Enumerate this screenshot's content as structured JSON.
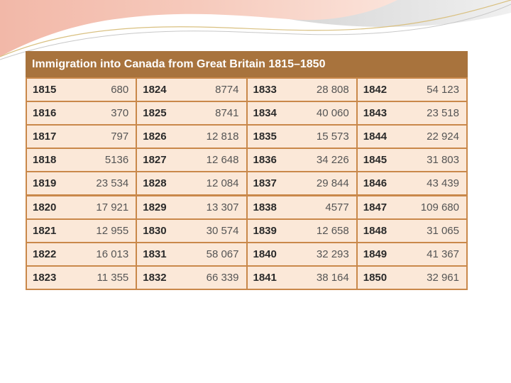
{
  "title": "Immigration into Canada from Great Britain 1815–1850",
  "colors": {
    "header_bg": "#a8733d",
    "cell_bg": "#fbe8d8",
    "border": "#c9884a",
    "decoration": "#e9a89c"
  },
  "columns": [
    [
      {
        "year": "1815",
        "value": "680"
      },
      {
        "year": "1816",
        "value": "370"
      },
      {
        "year": "1817",
        "value": "797"
      },
      {
        "year": "1818",
        "value": "5136"
      },
      {
        "year": "1819",
        "value": "23 534"
      },
      {
        "year": "1820",
        "value": "17 921"
      },
      {
        "year": "1821",
        "value": "12 955"
      },
      {
        "year": "1822",
        "value": "16 013"
      },
      {
        "year": "1823",
        "value": "11 355"
      }
    ],
    [
      {
        "year": "1824",
        "value": "8774"
      },
      {
        "year": "1825",
        "value": "8741"
      },
      {
        "year": "1826",
        "value": "12 818"
      },
      {
        "year": "1827",
        "value": "12 648"
      },
      {
        "year": "1828",
        "value": "12 084"
      },
      {
        "year": "1829",
        "value": "13 307"
      },
      {
        "year": "1830",
        "value": "30 574"
      },
      {
        "year": "1831",
        "value": "58 067"
      },
      {
        "year": "1832",
        "value": "66 339"
      }
    ],
    [
      {
        "year": "1833",
        "value": "28 808"
      },
      {
        "year": "1834",
        "value": "40 060"
      },
      {
        "year": "1835",
        "value": "15 573"
      },
      {
        "year": "1836",
        "value": "34 226"
      },
      {
        "year": "1837",
        "value": "29 844"
      },
      {
        "year": "1838",
        "value": "4577"
      },
      {
        "year": "1839",
        "value": "12 658"
      },
      {
        "year": "1840",
        "value": "32 293"
      },
      {
        "year": "1841",
        "value": "38 164"
      }
    ],
    [
      {
        "year": "1842",
        "value": "54 123"
      },
      {
        "year": "1843",
        "value": "23 518"
      },
      {
        "year": "1844",
        "value": "22 924"
      },
      {
        "year": "1845",
        "value": "31 803"
      },
      {
        "year": "1846",
        "value": "43 439"
      },
      {
        "year": "1847",
        "value": "109 680"
      },
      {
        "year": "1848",
        "value": "31 065"
      },
      {
        "year": "1849",
        "value": "41 367"
      },
      {
        "year": "1850",
        "value": "32 961"
      }
    ]
  ]
}
